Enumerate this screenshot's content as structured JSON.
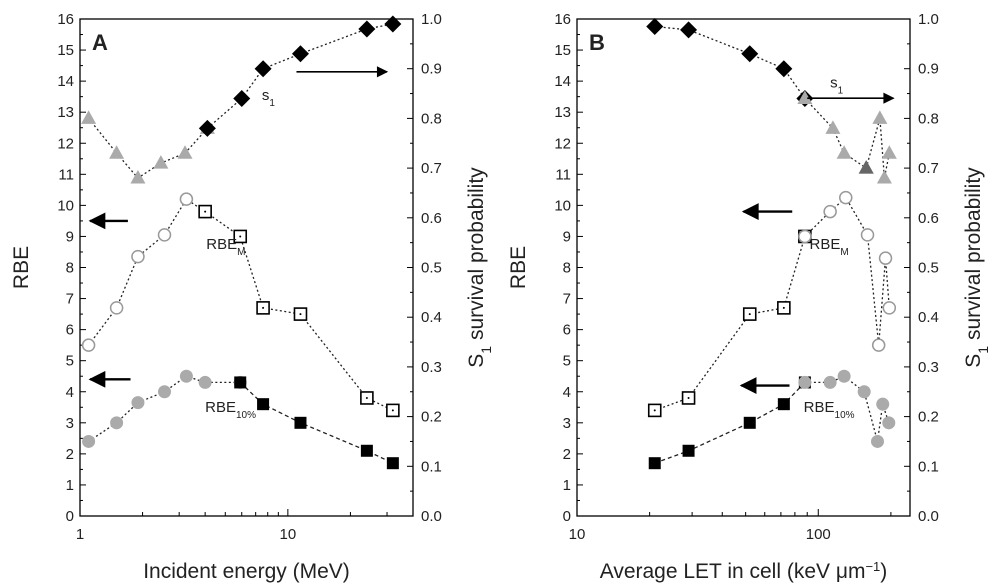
{
  "chart_data": [
    {
      "type": "scatter",
      "panel_label": "A",
      "xlabel": "Incident energy (MeV)",
      "xscale": "log",
      "xlim": [
        1,
        40
      ],
      "x_tick_labels": [
        "1",
        "10"
      ],
      "ylabel": "RBE",
      "ylim": [
        0,
        16
      ],
      "y_tick_labels": [
        "0",
        "1",
        "2",
        "3",
        "4",
        "5",
        "6",
        "7",
        "8",
        "9",
        "10",
        "11",
        "12",
        "13",
        "14",
        "15",
        "16"
      ],
      "y2label_main": "S",
      "y2label_sub": "1",
      "y2label_rest": " survival probability",
      "y2lim": [
        0,
        1
      ],
      "y2_tick_labels": [
        "0.0",
        "0.1",
        "0.2",
        "0.3",
        "0.4",
        "0.5",
        "0.6",
        "0.7",
        "0.8",
        "0.9",
        "1.0"
      ],
      "grid": false,
      "series": [
        {
          "axis": "right",
          "color": "#aaaaaa",
          "marker": "triangle",
          "line": "dotted",
          "points": [
            [
              1.1,
              0.8
            ],
            [
              1.5,
              0.73
            ],
            [
              1.9,
              0.68
            ],
            [
              2.45,
              0.71
            ],
            [
              3.2,
              0.73
            ],
            [
              4.1,
              0.78
            ]
          ]
        },
        {
          "axis": "right",
          "color": "#000000",
          "marker": "diamond",
          "line": "dotted",
          "points": [
            [
              4.1,
              0.78
            ],
            [
              6.0,
              0.84
            ],
            [
              7.6,
              0.9
            ],
            [
              11.5,
              0.93
            ],
            [
              24.0,
              0.98
            ],
            [
              32.0,
              0.99
            ]
          ]
        },
        {
          "axis": "left",
          "color": "#999999",
          "marker": "open-circle",
          "line": "dotted",
          "points": [
            [
              1.1,
              5.5
            ],
            [
              1.5,
              6.7
            ],
            [
              1.9,
              8.35
            ],
            [
              2.55,
              9.05
            ],
            [
              3.25,
              10.2
            ],
            [
              4.0,
              9.8
            ]
          ]
        },
        {
          "axis": "left",
          "color": "#000000",
          "marker": "open-square",
          "line": "dotted",
          "points": [
            [
              4.0,
              9.8
            ],
            [
              5.9,
              9.0
            ],
            [
              7.6,
              6.7
            ],
            [
              11.5,
              6.5
            ],
            [
              24.0,
              3.8
            ],
            [
              32.0,
              3.4
            ]
          ]
        },
        {
          "axis": "left",
          "color": "#aaaaaa",
          "marker": "circle",
          "line": "dotted",
          "points": [
            [
              1.1,
              2.4
            ],
            [
              1.5,
              3.0
            ],
            [
              1.9,
              3.65
            ],
            [
              2.55,
              4.0
            ],
            [
              3.25,
              4.5
            ],
            [
              4.0,
              4.3
            ],
            [
              5.9,
              4.3
            ]
          ]
        },
        {
          "axis": "left",
          "color": "#000000",
          "marker": "square",
          "line": "dashed",
          "points": [
            [
              5.9,
              4.3
            ],
            [
              7.6,
              3.6
            ],
            [
              11.5,
              3.0
            ],
            [
              24.0,
              2.1
            ],
            [
              32.0,
              1.7
            ]
          ]
        }
      ],
      "annotations": [
        {
          "text": "s",
          "sub": "1",
          "x": 7.5,
          "y": 13.4,
          "arrow": {
            "x1": 11,
            "y1": 14.3,
            "x2": 30,
            "y2": 14.3
          }
        },
        {
          "text": "RBE",
          "sub": "M",
          "x": 4.05,
          "y": 8.6
        },
        {
          "text": "RBE",
          "sub": "10%",
          "x": 4.0,
          "y": 3.35
        }
      ],
      "arrows": [
        {
          "x1": 1.7,
          "y1": 9.5,
          "x2": 1.12,
          "y2": 9.5
        },
        {
          "x1": 1.75,
          "y1": 4.4,
          "x2": 1.12,
          "y2": 4.4
        }
      ]
    },
    {
      "type": "scatter",
      "panel_label": "B",
      "xlabel": "Average LET in cell (keV μm",
      "xlabel_sup": "−1",
      "xlabel_end": ")",
      "xscale": "log",
      "xlim": [
        10,
        240
      ],
      "x_tick_labels": [
        "10",
        "100"
      ],
      "ylabel": "RBE",
      "ylim": [
        0,
        16
      ],
      "y_tick_labels": [
        "0",
        "1",
        "2",
        "3",
        "4",
        "5",
        "6",
        "7",
        "8",
        "9",
        "10",
        "11",
        "12",
        "13",
        "14",
        "15",
        "16"
      ],
      "y2label_main": "S",
      "y2label_sub": "1",
      "y2label_rest": " survival probability",
      "y2lim": [
        0,
        1
      ],
      "y2_tick_labels": [
        "0.0",
        "0.1",
        "0.2",
        "0.3",
        "0.4",
        "0.5",
        "0.6",
        "0.7",
        "0.8",
        "0.9",
        "1.0"
      ],
      "grid": false,
      "series": [
        {
          "axis": "right",
          "color": "#000000",
          "marker": "diamond",
          "line": "dotted",
          "points": [
            [
              21,
              0.985
            ],
            [
              29,
              0.978
            ],
            [
              52,
              0.93
            ],
            [
              72,
              0.9
            ],
            [
              88,
              0.84
            ]
          ]
        },
        {
          "axis": "right",
          "color": "#aaaaaa",
          "marker": "triangle",
          "line": "dotted",
          "points": [
            [
              88,
              0.84
            ],
            [
              115,
              0.78
            ],
            [
              128,
              0.73
            ],
            [
              158,
              0.7
            ],
            [
              180,
              0.8
            ],
            [
              188,
              0.68
            ],
            [
              197,
              0.73
            ]
          ]
        },
        {
          "axis": "right",
          "color": "#666666",
          "marker": "triangle",
          "line": "none",
          "points": [
            [
              158,
              0.7
            ]
          ]
        },
        {
          "axis": "left",
          "color": "#000000",
          "marker": "open-square",
          "line": "dotted",
          "points": [
            [
              21,
              3.4
            ],
            [
              29,
              3.8
            ],
            [
              52,
              6.5
            ],
            [
              72,
              6.7
            ],
            [
              88,
              9.0
            ]
          ]
        },
        {
          "axis": "left",
          "color": "#999999",
          "marker": "open-circle",
          "line": "dotted",
          "points": [
            [
              88,
              9.0
            ],
            [
              112,
              9.8
            ],
            [
              130,
              10.25
            ],
            [
              160,
              9.05
            ],
            [
              178,
              5.5
            ],
            [
              190,
              8.3
            ],
            [
              197,
              6.7
            ]
          ]
        },
        {
          "axis": "left",
          "color": "#000000",
          "marker": "square",
          "line": "dashed",
          "points": [
            [
              21,
              1.7
            ],
            [
              29,
              2.1
            ],
            [
              52,
              3.0
            ],
            [
              72,
              3.6
            ],
            [
              88,
              4.3
            ]
          ]
        },
        {
          "axis": "left",
          "color": "#aaaaaa",
          "marker": "circle",
          "line": "dotted",
          "points": [
            [
              88,
              4.3
            ],
            [
              112,
              4.3
            ],
            [
              128,
              4.5
            ],
            [
              155,
              4.0
            ],
            [
              176,
              2.4
            ],
            [
              185,
              3.6
            ],
            [
              196,
              3.0
            ]
          ]
        }
      ],
      "annotations": [
        {
          "text": "s",
          "sub": "1",
          "x": 112,
          "y": 13.8,
          "arrow": {
            "x1": 90,
            "y1": 13.45,
            "x2": 205,
            "y2": 13.45
          }
        },
        {
          "text": "RBE",
          "sub": "M",
          "x": 92,
          "y": 8.6
        },
        {
          "text": "RBE",
          "sub": "10%",
          "x": 87,
          "y": 3.35
        }
      ],
      "arrows": [
        {
          "x1": 78,
          "y1": 9.8,
          "x2": 49,
          "y2": 9.8
        },
        {
          "x1": 76,
          "y1": 4.2,
          "x2": 48,
          "y2": 4.2
        }
      ]
    }
  ]
}
